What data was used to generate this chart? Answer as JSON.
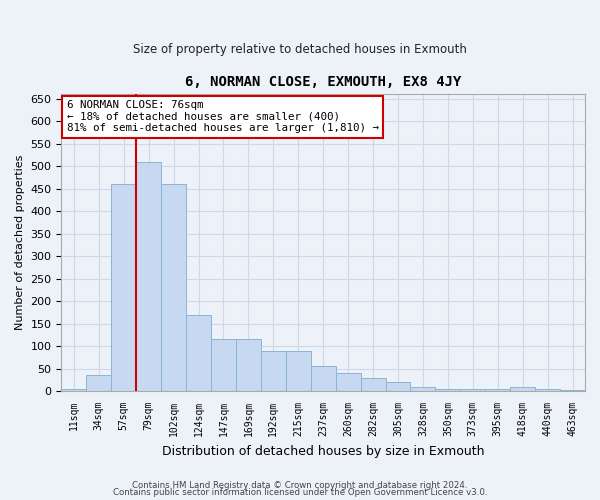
{
  "title": "6, NORMAN CLOSE, EXMOUTH, EX8 4JY",
  "subtitle": "Size of property relative to detached houses in Exmouth",
  "xlabel": "Distribution of detached houses by size in Exmouth",
  "ylabel": "Number of detached properties",
  "categories": [
    "11sqm",
    "34sqm",
    "57sqm",
    "79sqm",
    "102sqm",
    "124sqm",
    "147sqm",
    "169sqm",
    "192sqm",
    "215sqm",
    "237sqm",
    "260sqm",
    "282sqm",
    "305sqm",
    "328sqm",
    "350sqm",
    "373sqm",
    "395sqm",
    "418sqm",
    "440sqm",
    "463sqm"
  ],
  "values": [
    5,
    35,
    460,
    510,
    460,
    170,
    115,
    115,
    90,
    90,
    55,
    40,
    30,
    20,
    10,
    5,
    5,
    5,
    10,
    5,
    2
  ],
  "bar_color": "#c6d9f0",
  "bar_edge_color": "#8ab4d8",
  "bg_color": "#edf2f9",
  "grid_color": "#d0d8e8",
  "red_line_x": 2.5,
  "annotation_text": "6 NORMAN CLOSE: 76sqm\n← 18% of detached houses are smaller (400)\n81% of semi-detached houses are larger (1,810) →",
  "annotation_box_color": "#ffffff",
  "annotation_box_edge": "#cc0000",
  "footer1": "Contains HM Land Registry data © Crown copyright and database right 2024.",
  "footer2": "Contains public sector information licensed under the Open Government Licence v3.0.",
  "ylim": [
    0,
    660
  ],
  "yticks": [
    0,
    50,
    100,
    150,
    200,
    250,
    300,
    350,
    400,
    450,
    500,
    550,
    600,
    650
  ]
}
